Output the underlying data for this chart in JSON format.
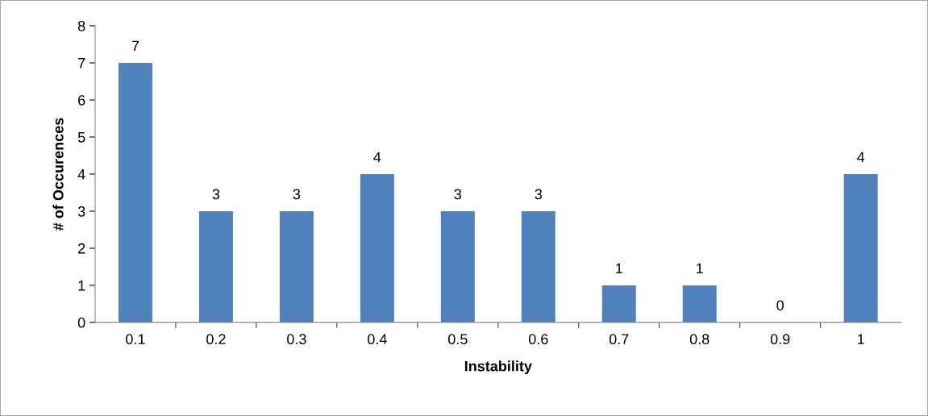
{
  "chart_data": {
    "type": "bar",
    "xlabel": "Instability",
    "ylabel": "# of Occurences",
    "categories": [
      "0.1",
      "0.2",
      "0.3",
      "0.4",
      "0.5",
      "0.6",
      "0.7",
      "0.8",
      "0.9",
      "1"
    ],
    "values": [
      7,
      3,
      3,
      4,
      3,
      3,
      1,
      1,
      0,
      4
    ],
    "color": "#4f81bd",
    "ylim": [
      0,
      8
    ],
    "yticks": [
      0,
      1,
      2,
      3,
      4,
      5,
      6,
      7,
      8
    ],
    "grid": false,
    "legend": false,
    "data_labels": true
  }
}
